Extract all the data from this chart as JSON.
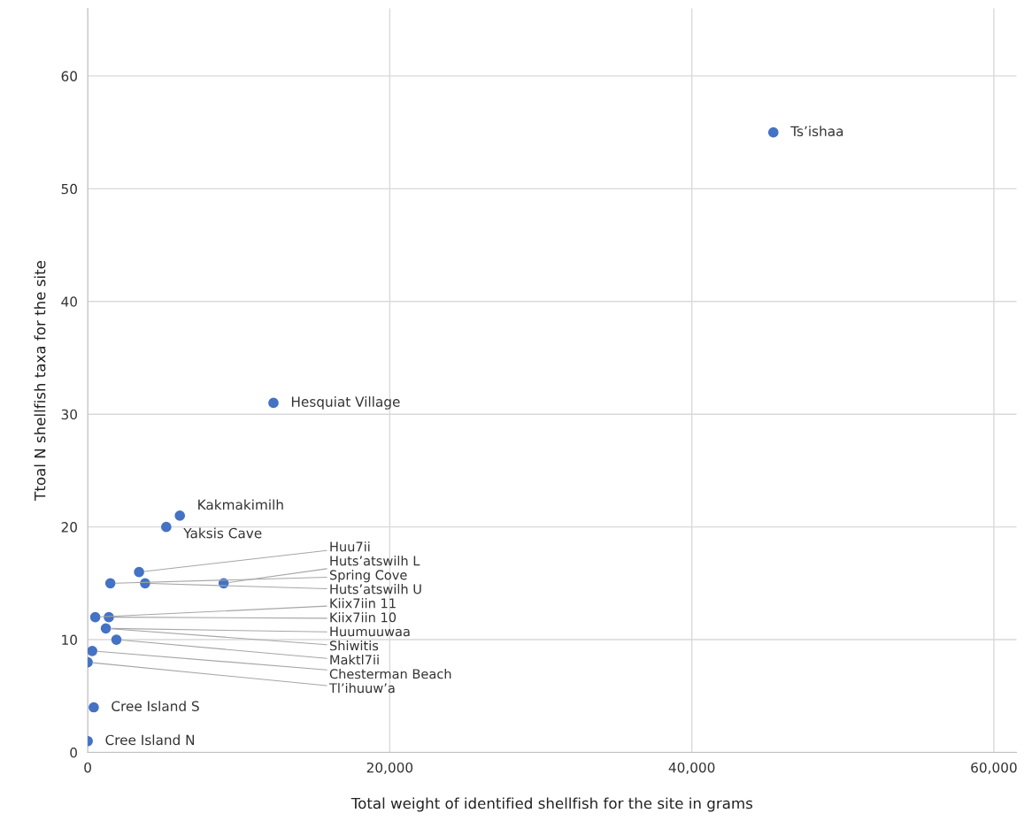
{
  "chart_data": {
    "type": "scatter",
    "xlabel": "Total weight of identified shellfish for the site in grams",
    "ylabel": "Ttoal N shellfish taxa for the site",
    "x": [
      45400,
      12300,
      6100,
      5200,
      3400,
      9000,
      1500,
      3800,
      500,
      1400,
      1300,
      1200,
      1900,
      300,
      0,
      400,
      0
    ],
    "series": [
      {
        "color": "#4472c4",
        "values": [
          55,
          31,
          21,
          20,
          16,
          15,
          15,
          15,
          12,
          12,
          null,
          11,
          10,
          9,
          8,
          4,
          1
        ]
      }
    ],
    "annotations": [
      {
        "text": "Ts’ishaa",
        "x": 45400,
        "y": 55
      },
      {
        "text": "Hesquiat Village",
        "x": 12300,
        "y": 31
      },
      {
        "text": "Kakmakimilh",
        "x": 6100,
        "y": 21
      },
      {
        "text": "Yaksis Cave",
        "x": 5200,
        "y": 20
      },
      {
        "text": "Huu7ii",
        "x": 3400,
        "y": 16
      },
      {
        "text": "Huts’atswilh L",
        "x": 9000,
        "y": 15
      },
      {
        "text": "Spring Cove",
        "x": 1500,
        "y": 15
      },
      {
        "text": "Huts’atswilh U",
        "x": 3800,
        "y": 15
      },
      {
        "text": "Kiix7iin 11",
        "x": 500,
        "y": 12
      },
      {
        "text": "Kiix7iin 10",
        "x": 1400,
        "y": 12
      },
      {
        "text": "Huumuuwaa",
        "x": 1300,
        "y": 11
      },
      {
        "text": "Shiwitis",
        "x": 1200,
        "y": 11
      },
      {
        "text": "Maktl7ii",
        "x": 1900,
        "y": 10
      },
      {
        "text": "Chesterman Beach",
        "x": 300,
        "y": 9
      },
      {
        "text": "Tl’ihuuw’a",
        "x": 0,
        "y": 8
      },
      {
        "text": "Cree Island S",
        "x": 400,
        "y": 4
      },
      {
        "text": "Cree Island N",
        "x": 0,
        "y": 1
      }
    ],
    "xlim": [
      0,
      61500
    ],
    "ylim": [
      0,
      66
    ],
    "xticks": [
      {
        "value": 0,
        "label": "0"
      },
      {
        "value": 20000,
        "label": "20,000"
      },
      {
        "value": 40000,
        "label": "40,000"
      },
      {
        "value": 60000,
        "label": "60,000"
      }
    ],
    "yticks": [
      0,
      10,
      20,
      30,
      40,
      50,
      60
    ],
    "grid": true,
    "marker": "circle"
  }
}
